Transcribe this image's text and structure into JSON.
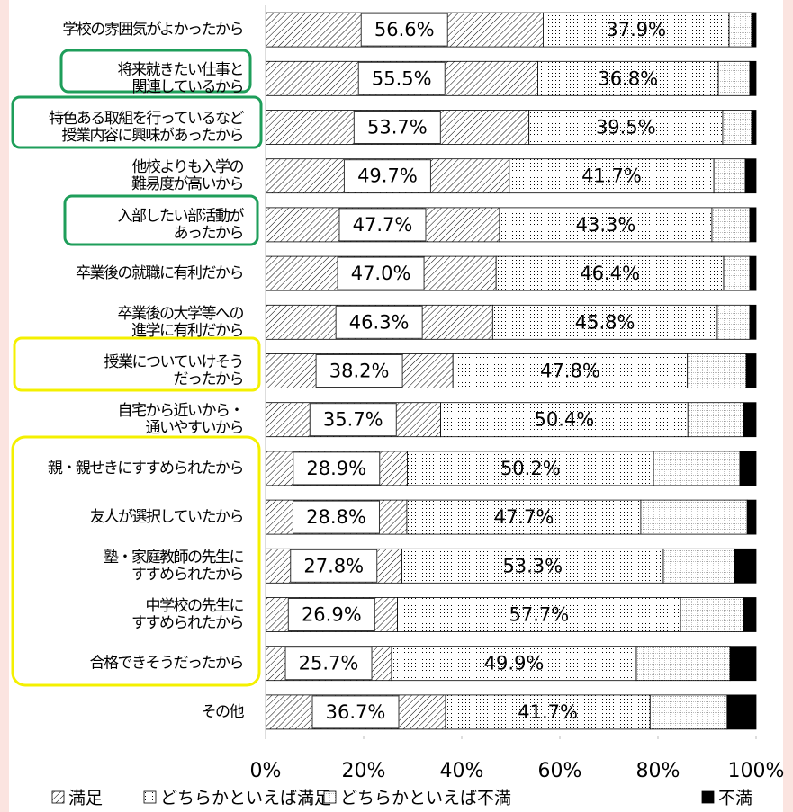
{
  "chart_data": {
    "type": "stacked-bar-horizontal",
    "categories": [
      [
        "学校の雰囲気がよかったから"
      ],
      [
        "将来就きたい仕事と",
        "関連しているから"
      ],
      [
        "特色ある取組を行っているなど",
        "授業内容に興味があったから"
      ],
      [
        "他校よりも入学の",
        "難易度が高いから"
      ],
      [
        "入部したい部活動が",
        "あったから"
      ],
      [
        "卒業後の就職に有利だから"
      ],
      [
        "卒業後の大学等への",
        "進学に有利だから"
      ],
      [
        "授業についていけそう",
        "だったから"
      ],
      [
        "自宅から近いから・",
        "通いやすいから"
      ],
      [
        "親・親せきにすすめられたから"
      ],
      [
        "友人が選択していたから"
      ],
      [
        "塾・家庭教師の先生に",
        "すすめられたから"
      ],
      [
        "中学校の先生に",
        "すすめられたから"
      ],
      [
        "合格できそうだったから"
      ],
      [
        "その他"
      ]
    ],
    "series": [
      {
        "name": "満足",
        "color": "#000000",
        "pattern": "hatch",
        "values": [
          56.6,
          55.5,
          53.7,
          49.7,
          47.7,
          47.0,
          46.3,
          38.2,
          35.7,
          28.9,
          28.8,
          27.8,
          26.9,
          25.7,
          36.7
        ],
        "value_labels": [
          "56.6%",
          "55.5%",
          "53.7%",
          "49.7%",
          "47.7%",
          "47.0%",
          "46.3%",
          "38.2%",
          "35.7%",
          "28.9%",
          "28.8%",
          "27.8%",
          "26.9%",
          "25.7%",
          "36.7%"
        ]
      },
      {
        "name": "どちらかといえば満足",
        "color": "#000000",
        "pattern": "dots",
        "values": [
          37.9,
          36.8,
          39.5,
          41.7,
          43.3,
          46.4,
          45.8,
          47.8,
          50.4,
          50.2,
          47.7,
          53.3,
          57.7,
          49.9,
          41.7
        ],
        "value_labels": [
          "37.9%",
          "36.8%",
          "39.5%",
          "41.7%",
          "43.3%",
          "46.4%",
          "45.8%",
          "47.8%",
          "50.4%",
          "50.2%",
          "47.7%",
          "53.3%",
          "57.7%",
          "49.9%",
          "41.7%"
        ]
      },
      {
        "name": "どちらかといえば不満",
        "color": "#000000",
        "pattern": "grid",
        "values": [
          4.6,
          6.4,
          5.9,
          6.4,
          7.7,
          5.3,
          6.6,
          12.0,
          11.3,
          17.6,
          21.7,
          14.5,
          12.8,
          19.1,
          15.7
        ]
      },
      {
        "name": "不満",
        "color": "#000000",
        "pattern": "solid",
        "values": [
          0.9,
          1.3,
          0.9,
          2.2,
          1.3,
          1.3,
          1.3,
          2.0,
          2.6,
          3.3,
          1.8,
          4.4,
          2.6,
          5.3,
          5.9
        ]
      }
    ],
    "xlim": [
      0,
      100
    ],
    "xticks": [
      {
        "value": 0,
        "label": "0%"
      },
      {
        "value": 20,
        "label": "20%"
      },
      {
        "value": 40,
        "label": "40%"
      },
      {
        "value": 60,
        "label": "60%"
      },
      {
        "value": 80,
        "label": "80%"
      },
      {
        "value": 100,
        "label": "100%"
      }
    ],
    "legend": "bottom"
  }
}
